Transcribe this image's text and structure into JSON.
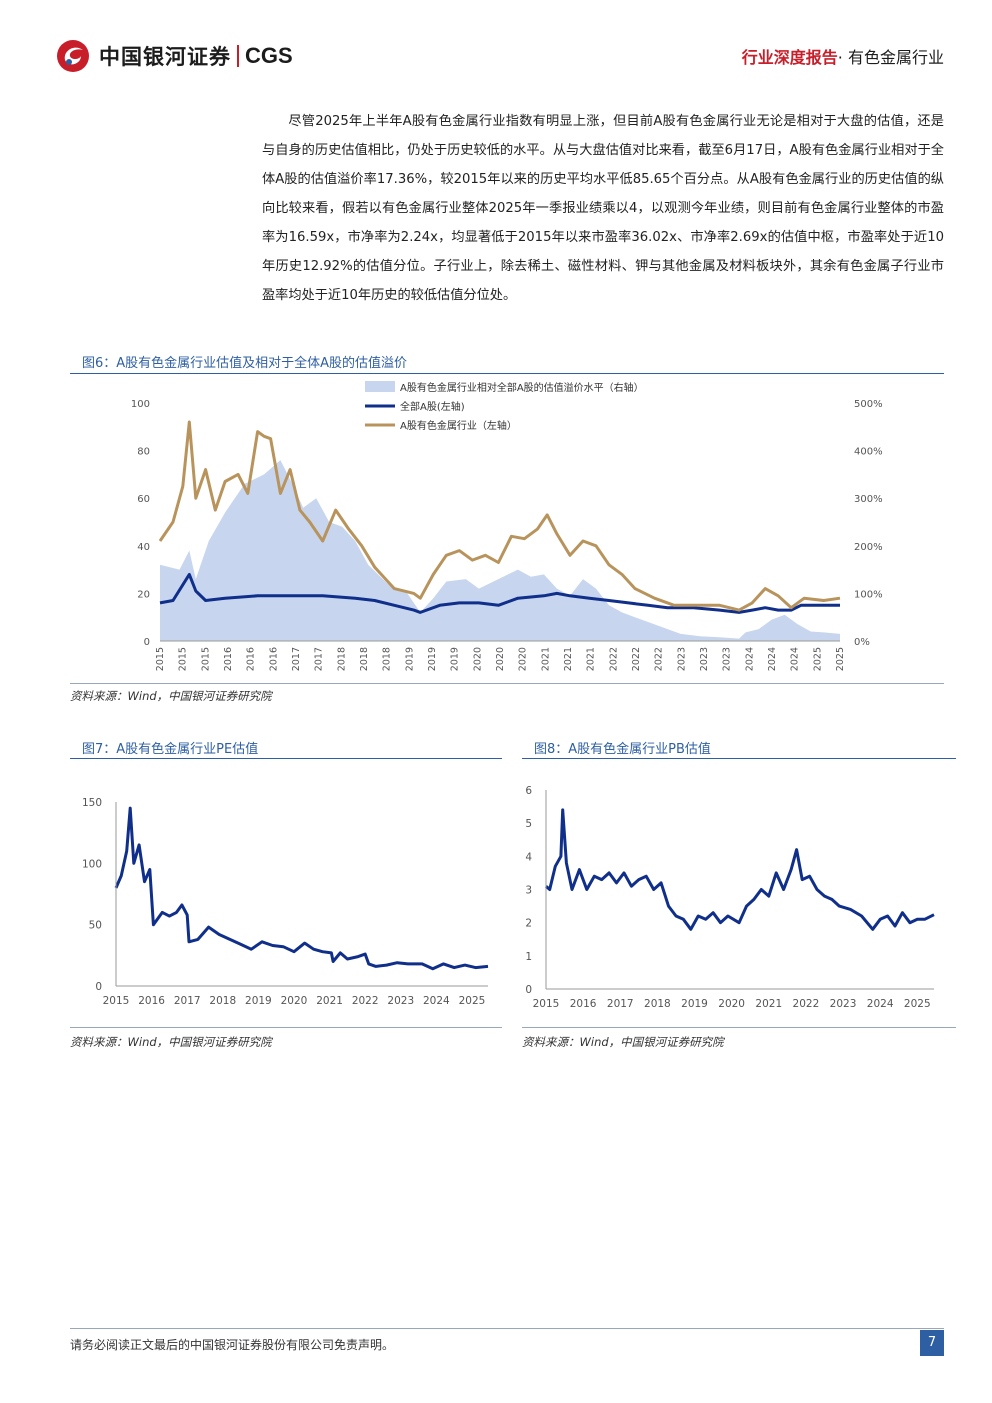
{
  "header": {
    "brand_cn": "中国银河证券",
    "brand_en": "CGS",
    "report_kind": "行业深度报告",
    "report_sep": "·",
    "industry": "有色金属行业"
  },
  "paragraph": "尽管2025年上半年A股有色金属行业指数有明显上涨，但目前A股有色金属行业无论是相对于大盘的估值，还是与自身的历史估值相比，仍处于历史较低的水平。从与大盘估值对比来看，截至6月17日，A股有色金属行业相对于全体A股的估值溢价率17.36%，较2015年以来的历史平均水平低85.65个百分点。从A股有色金属行业的历史估值的纵向比较来看，假若以有色金属行业整体2025年一季报业绩乘以4，以观测今年业绩，则目前有色金属行业整体的市盈率为16.59x，市净率为2.24x，均显著低于2015年以来市盈率36.02x、市净率2.69x的估值中枢，市盈率处于近10年历史12.92%的估值分位。子行业上，除去稀土、磁性材料、钾与其他金属及材料板块外，其余有色金属子行业市盈率均处于近10年历史的较低估值分位处。",
  "figures": {
    "fig6_title": "图6：A股有色金属行业估值及相对于全体A股的估值溢价",
    "fig7_title": "图7：A股有色金属行业PE估值",
    "fig8_title": "图8：A股有色金属行业PB估值",
    "source": "资料来源：Wind，中国银河证券研究院"
  },
  "colors": {
    "accent_red": "#c81e2a",
    "heading_blue": "#2e5fa3",
    "navy": "#0f2f8a",
    "gold": "#b8945c",
    "area": "#c7d6ee"
  },
  "chart_data": [
    {
      "type": "line",
      "id": "fig6",
      "series": [
        {
          "name": "A股有色金属行业相对全部A股的估值溢价水平（右轴）",
          "kind": "area",
          "axis": "right",
          "values": [
            [
              2015.0,
              160
            ],
            [
              2015.3,
              150
            ],
            [
              2015.45,
              190
            ],
            [
              2015.55,
              130
            ],
            [
              2015.75,
              210
            ],
            [
              2016.0,
              270
            ],
            [
              2016.3,
              330
            ],
            [
              2016.6,
              350
            ],
            [
              2016.85,
              380
            ],
            [
              2017.0,
              340
            ],
            [
              2017.2,
              280
            ],
            [
              2017.4,
              300
            ],
            [
              2017.6,
              250
            ],
            [
              2017.8,
              240
            ],
            [
              2018.0,
              210
            ],
            [
              2018.2,
              160
            ],
            [
              2018.5,
              120
            ],
            [
              2018.8,
              100
            ],
            [
              2019.0,
              60
            ],
            [
              2019.2,
              90
            ],
            [
              2019.4,
              125
            ],
            [
              2019.7,
              130
            ],
            [
              2019.9,
              110
            ],
            [
              2020.2,
              130
            ],
            [
              2020.5,
              150
            ],
            [
              2020.7,
              135
            ],
            [
              2020.9,
              140
            ],
            [
              2021.1,
              110
            ],
            [
              2021.3,
              95
            ],
            [
              2021.5,
              130
            ],
            [
              2021.7,
              110
            ],
            [
              2021.9,
              75
            ],
            [
              2022.1,
              60
            ],
            [
              2022.4,
              45
            ],
            [
              2022.7,
              30
            ],
            [
              2023.0,
              15
            ],
            [
              2023.3,
              10
            ],
            [
              2023.6,
              8
            ],
            [
              2023.9,
              5
            ],
            [
              2024.0,
              18
            ],
            [
              2024.2,
              25
            ],
            [
              2024.4,
              45
            ],
            [
              2024.6,
              55
            ],
            [
              2024.8,
              35
            ],
            [
              2025.0,
              20
            ],
            [
              2025.2,
              18
            ],
            [
              2025.45,
              15
            ]
          ]
        },
        {
          "name": "全部A股(左轴)",
          "kind": "line",
          "axis": "left",
          "values": [
            [
              2015.0,
              16
            ],
            [
              2015.2,
              17
            ],
            [
              2015.45,
              28
            ],
            [
              2015.55,
              21
            ],
            [
              2015.7,
              17
            ],
            [
              2016.0,
              18
            ],
            [
              2016.5,
              19
            ],
            [
              2017.0,
              19
            ],
            [
              2017.5,
              19
            ],
            [
              2018.0,
              18
            ],
            [
              2018.3,
              17
            ],
            [
              2018.6,
              15
            ],
            [
              2018.9,
              13
            ],
            [
              2019.0,
              12
            ],
            [
              2019.3,
              15
            ],
            [
              2019.6,
              16
            ],
            [
              2019.9,
              16
            ],
            [
              2020.2,
              15
            ],
            [
              2020.5,
              18
            ],
            [
              2020.9,
              19
            ],
            [
              2021.1,
              20
            ],
            [
              2021.3,
              19
            ],
            [
              2021.6,
              18
            ],
            [
              2021.9,
              17
            ],
            [
              2022.2,
              16
            ],
            [
              2022.5,
              15
            ],
            [
              2022.8,
              14
            ],
            [
              2023.2,
              14
            ],
            [
              2023.6,
              13
            ],
            [
              2023.9,
              12
            ],
            [
              2024.1,
              13
            ],
            [
              2024.3,
              14
            ],
            [
              2024.5,
              13
            ],
            [
              2024.7,
              13
            ],
            [
              2024.85,
              15
            ],
            [
              2025.1,
              15
            ],
            [
              2025.45,
              15
            ]
          ]
        },
        {
          "name": "A股有色金属行业（左轴）",
          "kind": "line",
          "axis": "left",
          "values": [
            [
              2015.0,
              42
            ],
            [
              2015.2,
              50
            ],
            [
              2015.35,
              65
            ],
            [
              2015.45,
              92
            ],
            [
              2015.55,
              60
            ],
            [
              2015.7,
              72
            ],
            [
              2015.85,
              55
            ],
            [
              2016.0,
              67
            ],
            [
              2016.2,
              70
            ],
            [
              2016.35,
              62
            ],
            [
              2016.5,
              88
            ],
            [
              2016.6,
              86
            ],
            [
              2016.7,
              85
            ],
            [
              2016.85,
              62
            ],
            [
              2017.0,
              72
            ],
            [
              2017.15,
              55
            ],
            [
              2017.3,
              50
            ],
            [
              2017.5,
              42
            ],
            [
              2017.7,
              55
            ],
            [
              2017.9,
              47
            ],
            [
              2018.1,
              40
            ],
            [
              2018.3,
              31
            ],
            [
              2018.6,
              22
            ],
            [
              2018.9,
              20
            ],
            [
              2019.0,
              18
            ],
            [
              2019.2,
              28
            ],
            [
              2019.4,
              36
            ],
            [
              2019.6,
              38
            ],
            [
              2019.8,
              34
            ],
            [
              2020.0,
              36
            ],
            [
              2020.2,
              33
            ],
            [
              2020.4,
              44
            ],
            [
              2020.6,
              43
            ],
            [
              2020.8,
              47
            ],
            [
              2020.95,
              53
            ],
            [
              2021.1,
              45
            ],
            [
              2021.3,
              36
            ],
            [
              2021.5,
              42
            ],
            [
              2021.7,
              40
            ],
            [
              2021.9,
              32
            ],
            [
              2022.1,
              28
            ],
            [
              2022.3,
              22
            ],
            [
              2022.6,
              18
            ],
            [
              2022.9,
              15
            ],
            [
              2023.2,
              15
            ],
            [
              2023.6,
              15
            ],
            [
              2023.9,
              13
            ],
            [
              2024.1,
              16
            ],
            [
              2024.3,
              22
            ],
            [
              2024.5,
              19
            ],
            [
              2024.7,
              14
            ],
            [
              2024.9,
              18
            ],
            [
              2025.2,
              17
            ],
            [
              2025.45,
              18
            ]
          ]
        }
      ],
      "xlabels": [
        "2015",
        "2015",
        "2015",
        "2016",
        "2016",
        "2016",
        "2017",
        "2017",
        "2018",
        "2018",
        "2018",
        "2019",
        "2019",
        "2019",
        "2020",
        "2020",
        "2020",
        "2021",
        "2021",
        "2021",
        "2022",
        "2022",
        "2022",
        "2023",
        "2023",
        "2023",
        "2024",
        "2024",
        "2024",
        "2025",
        "2025"
      ],
      "left_ylim": [
        0,
        100
      ],
      "left_ticks": [
        "100",
        "80",
        "60",
        "40",
        "20",
        "0"
      ],
      "right_ylim": [
        0,
        500
      ],
      "right_ticks": [
        "500%",
        "400%",
        "300%",
        "200%",
        "100%",
        "0%"
      ],
      "legend_position": "top-center",
      "grid": false
    },
    {
      "type": "line",
      "id": "fig7",
      "values": [
        [
          2015.0,
          80
        ],
        [
          2015.15,
          90
        ],
        [
          2015.3,
          110
        ],
        [
          2015.4,
          145
        ],
        [
          2015.5,
          100
        ],
        [
          2015.65,
          115
        ],
        [
          2015.8,
          85
        ],
        [
          2015.95,
          95
        ],
        [
          2016.05,
          50
        ],
        [
          2016.3,
          60
        ],
        [
          2016.5,
          57
        ],
        [
          2016.7,
          60
        ],
        [
          2016.85,
          66
        ],
        [
          2017.0,
          58
        ],
        [
          2017.05,
          36
        ],
        [
          2017.3,
          38
        ],
        [
          2017.6,
          48
        ],
        [
          2017.9,
          42
        ],
        [
          2018.2,
          38
        ],
        [
          2018.5,
          34
        ],
        [
          2018.8,
          30
        ],
        [
          2019.1,
          36
        ],
        [
          2019.4,
          33
        ],
        [
          2019.7,
          32
        ],
        [
          2020.0,
          28
        ],
        [
          2020.3,
          35
        ],
        [
          2020.55,
          30
        ],
        [
          2020.8,
          28
        ],
        [
          2021.05,
          27
        ],
        [
          2021.1,
          20
        ],
        [
          2021.3,
          27
        ],
        [
          2021.5,
          22
        ],
        [
          2021.8,
          24
        ],
        [
          2022.0,
          26
        ],
        [
          2022.1,
          18
        ],
        [
          2022.3,
          16
        ],
        [
          2022.6,
          17
        ],
        [
          2022.9,
          19
        ],
        [
          2023.2,
          18
        ],
        [
          2023.6,
          18
        ],
        [
          2023.9,
          14
        ],
        [
          2024.2,
          18
        ],
        [
          2024.5,
          15
        ],
        [
          2024.8,
          17
        ],
        [
          2025.1,
          15
        ],
        [
          2025.45,
          16
        ]
      ],
      "xlabels": [
        "2015",
        "2016",
        "2017",
        "2018",
        "2019",
        "2020",
        "2021",
        "2022",
        "2023",
        "2024",
        "2025"
      ],
      "ylim": [
        0,
        150
      ],
      "yticks": [
        "150",
        "100",
        "50",
        "0"
      ],
      "grid": false
    },
    {
      "type": "line",
      "id": "fig8",
      "values": [
        [
          2015.0,
          3.1
        ],
        [
          2015.1,
          3.0
        ],
        [
          2015.25,
          3.7
        ],
        [
          2015.4,
          4.0
        ],
        [
          2015.45,
          5.4
        ],
        [
          2015.55,
          3.8
        ],
        [
          2015.7,
          3.0
        ],
        [
          2015.9,
          3.6
        ],
        [
          2016.1,
          3.0
        ],
        [
          2016.3,
          3.4
        ],
        [
          2016.5,
          3.3
        ],
        [
          2016.7,
          3.5
        ],
        [
          2016.9,
          3.2
        ],
        [
          2017.1,
          3.5
        ],
        [
          2017.3,
          3.1
        ],
        [
          2017.5,
          3.3
        ],
        [
          2017.7,
          3.4
        ],
        [
          2017.9,
          3.0
        ],
        [
          2018.1,
          3.2
        ],
        [
          2018.3,
          2.5
        ],
        [
          2018.5,
          2.2
        ],
        [
          2018.7,
          2.1
        ],
        [
          2018.9,
          1.8
        ],
        [
          2019.1,
          2.2
        ],
        [
          2019.3,
          2.1
        ],
        [
          2019.5,
          2.3
        ],
        [
          2019.7,
          2.0
        ],
        [
          2019.9,
          2.2
        ],
        [
          2020.2,
          2.0
        ],
        [
          2020.4,
          2.5
        ],
        [
          2020.6,
          2.7
        ],
        [
          2020.8,
          3.0
        ],
        [
          2021.0,
          2.8
        ],
        [
          2021.2,
          3.5
        ],
        [
          2021.4,
          3.0
        ],
        [
          2021.6,
          3.6
        ],
        [
          2021.75,
          4.2
        ],
        [
          2021.9,
          3.3
        ],
        [
          2022.1,
          3.4
        ],
        [
          2022.3,
          3.0
        ],
        [
          2022.5,
          2.8
        ],
        [
          2022.7,
          2.7
        ],
        [
          2022.9,
          2.5
        ],
        [
          2023.2,
          2.4
        ],
        [
          2023.5,
          2.2
        ],
        [
          2023.8,
          1.8
        ],
        [
          2024.0,
          2.1
        ],
        [
          2024.2,
          2.2
        ],
        [
          2024.4,
          1.9
        ],
        [
          2024.6,
          2.3
        ],
        [
          2024.8,
          2.0
        ],
        [
          2025.0,
          2.1
        ],
        [
          2025.2,
          2.1
        ],
        [
          2025.45,
          2.24
        ]
      ],
      "xlabels": [
        "2015",
        "2016",
        "2017",
        "2018",
        "2019",
        "2020",
        "2021",
        "2022",
        "2023",
        "2024",
        "2025"
      ],
      "ylim": [
        0,
        6
      ],
      "yticks": [
        "6",
        "5",
        "4",
        "3",
        "2",
        "1",
        "0"
      ],
      "grid": false
    }
  ]
}
